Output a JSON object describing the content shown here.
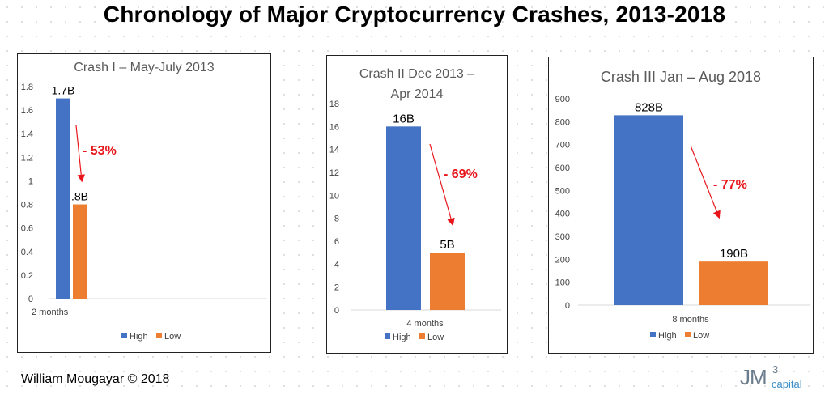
{
  "page": {
    "title": "Chronology of Major Cryptocurrency Crashes, 2013-2018",
    "credit": "William Mougayar © 2018",
    "logo": {
      "main": "JM",
      "superscript": "3",
      "sub": "capital"
    }
  },
  "chart_data": [
    {
      "type": "bar",
      "title": "Crash I – May-July 2013",
      "title_lines": [
        "Crash I – May-July 2013"
      ],
      "categories": [
        "2 months"
      ],
      "series": [
        {
          "name": "High",
          "values": [
            1.7
          ],
          "label": "1.7B"
        },
        {
          "name": "Low",
          "values": [
            0.8
          ],
          "label": ".8B"
        }
      ],
      "ylim": [
        0,
        1.8
      ],
      "yticks": [
        0,
        0.2,
        0.4,
        0.6,
        0.8,
        1,
        1.2,
        1.4,
        1.6,
        1.8
      ],
      "change_label": "- 53%",
      "legend": [
        "High",
        "Low"
      ],
      "colors": {
        "High": "#4472c4",
        "Low": "#ed7d31",
        "annotation": "#e8161b"
      }
    },
    {
      "type": "bar",
      "title": "Crash II Dec 2013 – Apr 2014",
      "title_lines": [
        "Crash II Dec 2013 –",
        "Apr 2014"
      ],
      "categories": [
        "4 months"
      ],
      "series": [
        {
          "name": "High",
          "values": [
            16
          ],
          "label": "16B"
        },
        {
          "name": "Low",
          "values": [
            5
          ],
          "label": "5B"
        }
      ],
      "ylim": [
        0,
        18
      ],
      "yticks": [
        0,
        2,
        4,
        6,
        8,
        10,
        12,
        14,
        16,
        18
      ],
      "change_label": "- 69%",
      "legend": [
        "High",
        "Low"
      ],
      "colors": {
        "High": "#4472c4",
        "Low": "#ed7d31",
        "annotation": "#e8161b"
      }
    },
    {
      "type": "bar",
      "title": "Crash III Jan – Aug 2018",
      "title_lines": [
        "Crash III Jan – Aug 2018"
      ],
      "categories": [
        "8 months"
      ],
      "series": [
        {
          "name": "High",
          "values": [
            828
          ],
          "label": "828B"
        },
        {
          "name": "Low",
          "values": [
            190
          ],
          "label": "190B"
        }
      ],
      "ylim": [
        0,
        900
      ],
      "yticks": [
        0,
        100,
        200,
        300,
        400,
        500,
        600,
        700,
        800,
        900
      ],
      "change_label": "- 77%",
      "legend": [
        "High",
        "Low"
      ],
      "colors": {
        "High": "#4472c4",
        "Low": "#ed7d31",
        "annotation": "#e8161b"
      }
    }
  ]
}
